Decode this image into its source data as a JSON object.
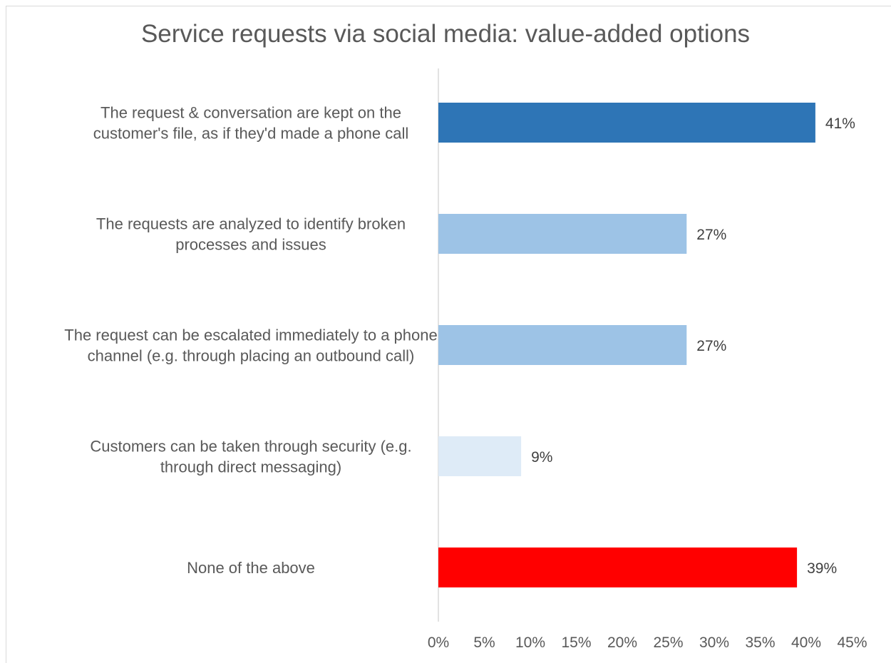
{
  "chart_data": {
    "type": "bar",
    "orientation": "horizontal",
    "title": "Service requests via social media: value-added options",
    "categories": [
      [
        "The request & conversation are kept on the",
        "customer's file, as if they'd made a phone call"
      ],
      [
        "The requests are analyzed to identify broken",
        "processes and issues"
      ],
      [
        "The request can be escalated immediately to a phone",
        "channel (e.g. through placing an outbound call)"
      ],
      [
        "Customers can be taken through security (e.g.",
        "through direct messaging)"
      ],
      [
        "None of the above"
      ]
    ],
    "values": [
      41,
      27,
      27,
      9,
      39
    ],
    "value_labels": [
      "41%",
      "27%",
      "27%",
      "9%",
      "39%"
    ],
    "colors": [
      "#2e75b6",
      "#9dc3e6",
      "#9dc3e6",
      "#deebf7",
      "#ff0000"
    ],
    "xlim": [
      0,
      45
    ],
    "xticks": [
      0,
      5,
      10,
      15,
      20,
      25,
      30,
      35,
      40,
      45
    ],
    "xtick_labels": [
      "0%",
      "5%",
      "10%",
      "15%",
      "20%",
      "25%",
      "30%",
      "35%",
      "40%",
      "45%"
    ],
    "xlabel": "",
    "ylabel": "",
    "grid": false,
    "legend": "none"
  }
}
